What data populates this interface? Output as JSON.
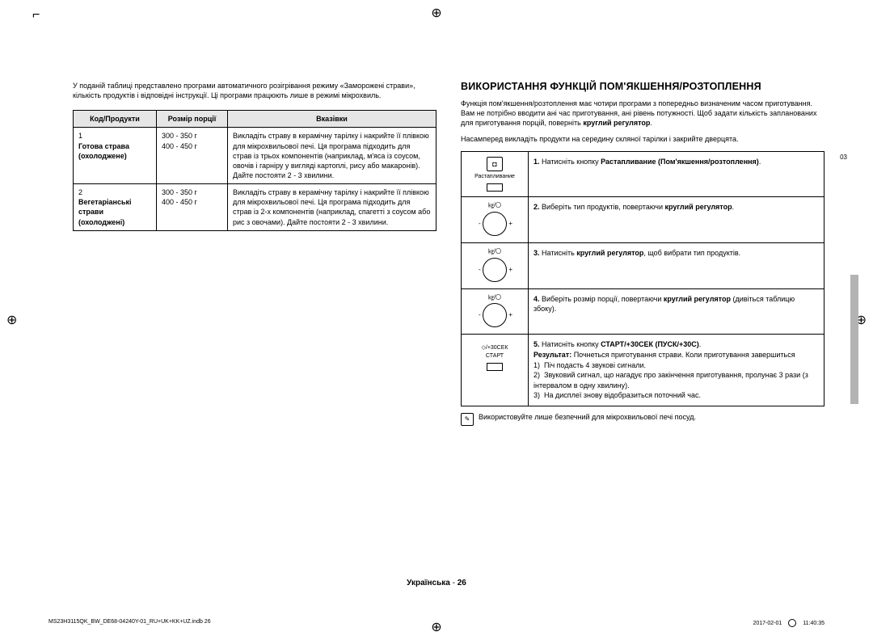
{
  "leftCol": {
    "intro": "У поданій таблиці представлено програми автоматичного розігрівання режиму «Заморожені страви», кількість продуктів і відповідні інструкції. Ці програми працюють лише в режимі мікрохвиль.",
    "headers": {
      "code": "Код/Продукти",
      "portion": "Розмір порції",
      "hints": "Вказівки"
    },
    "rows": [
      {
        "code": "1\nГотова страва (охолоджене)",
        "codeLines": [
          "1",
          "Готова страва",
          "(охолоджене)"
        ],
        "portion": "300 - 350 г\n400 - 450 г",
        "hint": "Викладіть страву в керамічну тарілку і накрийте її плівкою для мікрохвильової печі. Ця програма підходить для страв із трьох компонентів (наприклад, м'яса із соусом, овочів і гарніру у вигляді картоплі, рису або макаронів). Дайте постояти 2 - 3 хвилини."
      },
      {
        "code": "2\nВегетаріанські страви (охолоджені)",
        "codeLines": [
          "2",
          "Вегетаріанські",
          "страви",
          "(охолоджені)"
        ],
        "portion": "300 - 350 г\n400 - 450 г",
        "hint": "Викладіть страву в керамічну тарілку і накрийте її плівкою для мікрохвильової печі. Ця програма підходить для страв із 2-х компонентів (наприклад, спагетті з соусом або рис з овочами). Дайте постояти 2 - 3 хвилини."
      }
    ]
  },
  "rightCol": {
    "heading": "ВИКОРИСТАННЯ ФУНКЦІЙ ПОМ'ЯКШЕННЯ/РОЗТОПЛЕННЯ",
    "intro1": "Функція пом'якшення/розтоплення має чотири програми з попередньо визначеним часом приготування. Вам не потрібно вводити ані час приготування, ані рівень потужності. Щоб задати кількість запланованих для приготування порцій, поверніть ",
    "intro1b": "круглий регулятор",
    "intro2": "Насамперед викладіть продукти на середину скляної тарілки і закрийте дверцята.",
    "steps": [
      {
        "iconType": "boxlabel",
        "iconLabel": "Растапливание",
        "iconGlyph": "⊡",
        "html": "<b>1.</b> Натисніть кнопку <b>Растапливание (Пом'якшення/розтоплення)</b>."
      },
      {
        "iconType": "dial",
        "dialTop": "㎏/〇",
        "html": "<b>2.</b> Виберіть тип продуктів, повертаючи <b>круглий регулятор</b>."
      },
      {
        "iconType": "dial",
        "dialTop": "㎏/〇",
        "html": "<b>3.</b> Натисніть <b>круглий регулятор</b>, щоб вибрати тип продуктів."
      },
      {
        "iconType": "dial",
        "dialTop": "㎏/〇",
        "html": "<b>4.</b> Виберіть розмір порції, повертаючи <b>круглий регулятор</b> (дивіться таблицю збоку)."
      },
      {
        "iconType": "startbtn",
        "iconLine1": "◇/+30СЕК",
        "iconLine2": "СТАРТ",
        "html": "<b>5.</b> Натисніть кнопку <b>СТАРТ/+30СЕК (ПУСК/+30С)</b>.<br><b>Результат:</b> Почнеться приготування страви. Коли приготування завершиться<br>1)&nbsp;&nbsp;Піч подасть 4 звукові сигнали.<br>2)&nbsp;&nbsp;Звуковий сигнал, що нагадує про закінчення приготування, пролунає 3 рази (з інтервалом в одну хвилину).<br>3)&nbsp;&nbsp;На дисплеї знову відобразиться поточний час."
      }
    ],
    "note": "Використовуйте лише безпечний для мікрохвильової печі посуд."
  },
  "sideTab": "03",
  "footer": {
    "lang": "Українська",
    "sep": " - ",
    "page": "26"
  },
  "tinyFooter": {
    "left": "MS23H3115QK_BW_DE68-04240Y-01_RU+UK+KK+UZ.indb   26",
    "date": "2017-02-01",
    "time": "11:40:35"
  }
}
